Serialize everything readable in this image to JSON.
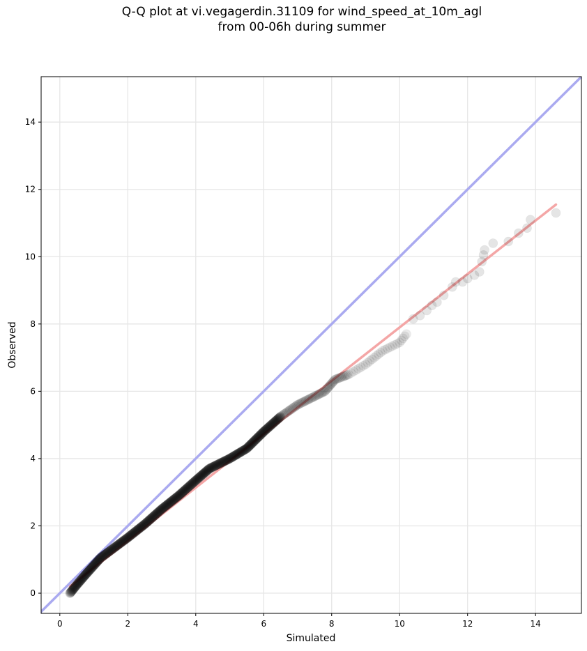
{
  "chart_data": {
    "type": "scatter",
    "title_lines": [
      "Q-Q plot at vi.vegagerdin.31109 for wind_speed_at_10m_agl",
      "from 00-06h during summer"
    ],
    "xlabel": "Simulated",
    "ylabel": "Observed",
    "xlim": [
      -0.55,
      15.35
    ],
    "ylim": [
      -0.6,
      15.35
    ],
    "xticks": [
      0,
      2,
      4,
      6,
      8,
      10,
      12,
      14
    ],
    "yticks": [
      0,
      2,
      4,
      6,
      8,
      10,
      12,
      14
    ],
    "grid": true,
    "identity_line": {
      "color": "#aaaaf0"
    },
    "fit_line": {
      "x": [
        0.3,
        14.6
      ],
      "y": [
        0.2,
        11.55
      ],
      "color": "#f4a6a6"
    },
    "dense_trend": [
      [
        0.3,
        0.0
      ],
      [
        0.5,
        0.25
      ],
      [
        0.8,
        0.6
      ],
      [
        1.2,
        1.05
      ],
      [
        1.6,
        1.35
      ],
      [
        2.0,
        1.65
      ],
      [
        2.5,
        2.05
      ],
      [
        3.0,
        2.5
      ],
      [
        3.5,
        2.9
      ],
      [
        4.0,
        3.35
      ],
      [
        4.4,
        3.7
      ],
      [
        5.0,
        4.0
      ],
      [
        5.5,
        4.3
      ],
      [
        6.0,
        4.8
      ],
      [
        6.5,
        5.25
      ],
      [
        7.0,
        5.6
      ],
      [
        7.4,
        5.8
      ],
      [
        7.8,
        6.0
      ],
      [
        8.1,
        6.35
      ],
      [
        8.5,
        6.5
      ],
      [
        9.0,
        6.8
      ],
      [
        9.5,
        7.2
      ],
      [
        10.0,
        7.45
      ],
      [
        10.2,
        7.7
      ]
    ],
    "sparse_points": [
      [
        10.4,
        8.15
      ],
      [
        10.6,
        8.25
      ],
      [
        10.8,
        8.4
      ],
      [
        10.95,
        8.55
      ],
      [
        11.1,
        8.65
      ],
      [
        11.3,
        8.85
      ],
      [
        11.55,
        9.1
      ],
      [
        11.65,
        9.25
      ],
      [
        11.85,
        9.25
      ],
      [
        12.0,
        9.35
      ],
      [
        12.2,
        9.45
      ],
      [
        12.35,
        9.55
      ],
      [
        12.42,
        9.85
      ],
      [
        12.47,
        10.05
      ],
      [
        12.5,
        10.2
      ],
      [
        12.75,
        10.4
      ],
      [
        13.2,
        10.45
      ],
      [
        13.5,
        10.7
      ],
      [
        13.75,
        10.85
      ],
      [
        13.85,
        11.1
      ],
      [
        14.6,
        11.3
      ]
    ],
    "point_color": "#000000"
  }
}
